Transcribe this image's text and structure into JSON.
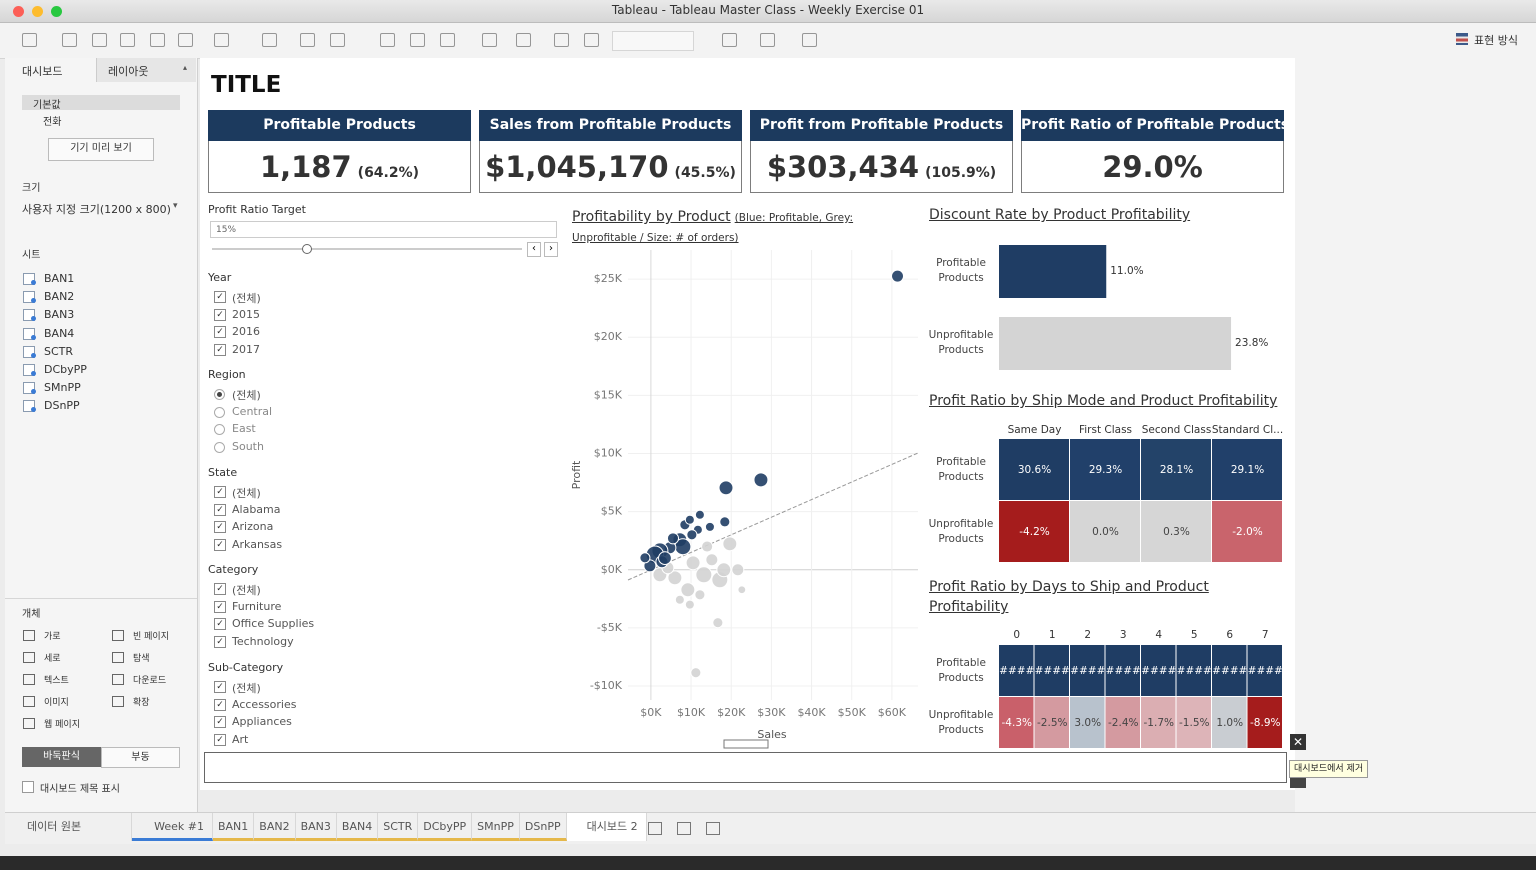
{
  "window": {
    "title": "Tableau - Tableau Master Class - Weekly Exercise 01"
  },
  "toolbar": {
    "show_me": "표현 방식"
  },
  "side_panel": {
    "tabs": [
      "대시보드",
      "레이아웃"
    ],
    "devices": [
      "기본값",
      "전화"
    ],
    "preview_button": "기기 미리 보기",
    "size_label": "크기",
    "size_value": "사용자 지정 크기(1200 x 800)",
    "sheets_label": "시트",
    "sheets": [
      "BAN1",
      "BAN2",
      "BAN3",
      "BAN4",
      "SCTR",
      "DCbyPP",
      "SMnPP",
      "DSnPP"
    ],
    "objects_label": "개체",
    "objects": [
      "가로",
      "빈 페이지",
      "세로",
      "탐색",
      "텍스트",
      "다운로드",
      "이미지",
      "확장",
      "웹 페이지"
    ],
    "layout_modes": [
      "바둑판식",
      "부동"
    ],
    "show_title": "대시보드 제목 표시"
  },
  "dashboard": {
    "title": "TITLE",
    "kpis": [
      {
        "label": "Profitable Products",
        "value": "1,187",
        "pct": "(64.2%)"
      },
      {
        "label": "Sales from Profitable Products",
        "value": "$1,045,170",
        "pct": "(45.5%)"
      },
      {
        "label": "Profit from Profitable Products",
        "value": "$303,434",
        "pct": "(105.9%)"
      },
      {
        "label": "Profit Ratio of Profitable Products",
        "value": "29.0%",
        "pct": null
      }
    ],
    "parameter": {
      "label": "Profit Ratio Target",
      "value": "15%"
    },
    "filters": [
      {
        "label": "Year",
        "type": "checkbox",
        "options": [
          "(전체)",
          "2015",
          "2016",
          "2017"
        ]
      },
      {
        "label": "Region",
        "type": "radio",
        "options": [
          "(전체)",
          "Central",
          "East",
          "South"
        ]
      },
      {
        "label": "State",
        "type": "checkbox",
        "options": [
          "(전체)",
          "Alabama",
          "Arizona",
          "Arkansas"
        ]
      },
      {
        "label": "Category",
        "type": "checkbox",
        "options": [
          "(전체)",
          "Furniture",
          "Office Supplies",
          "Technology"
        ]
      },
      {
        "label": "Sub-Category",
        "type": "checkbox",
        "options": [
          "(전체)",
          "Accessories",
          "Appliances",
          "Art"
        ]
      }
    ],
    "scatter": {
      "type": "scatter",
      "title": "Profitability by Product",
      "subtitle": "(Blue: Profitable, Grey: Unprofitable / Size: # of orders)",
      "x_label": "Sales",
      "y_label": "Profit",
      "xlim": [
        -5700,
        66500
      ],
      "ylim": [
        -11200,
        27500
      ],
      "xticks": [
        {
          "value": 0,
          "label": "$0K"
        },
        {
          "value": 10000,
          "label": "$10K"
        },
        {
          "value": 20000,
          "label": "$20K"
        },
        {
          "value": 30000,
          "label": "$30K"
        },
        {
          "value": 40000,
          "label": "$40K"
        },
        {
          "value": 50000,
          "label": "$50K"
        },
        {
          "value": 60000,
          "label": "$60K"
        }
      ],
      "yticks": [
        {
          "value": 25000,
          "label": "$25K"
        },
        {
          "value": 20000,
          "label": "$20K"
        },
        {
          "value": 15000,
          "label": "$15K"
        },
        {
          "value": 10000,
          "label": "$10K"
        },
        {
          "value": 5000,
          "label": "$5K"
        },
        {
          "value": 0,
          "label": "$0K"
        },
        {
          "value": -5000,
          "label": "-$5K"
        },
        {
          "value": -10000,
          "label": "-$10K"
        }
      ],
      "grid": true,
      "series": [
        {
          "color": "#d3d3d3",
          "x": [
            19650,
            21640,
            22640,
            16670,
            11190,
            9700,
            9200,
            13180,
            17160,
            5970,
            2240,
            4230,
            15170,
            12200,
            7210,
            18160,
            10500,
            14000
          ],
          "values": [
            2230,
            0,
            -1720,
            -4550,
            -8850,
            -3000,
            -1720,
            -430,
            -860,
            -690,
            -430,
            170,
            860,
            -2150,
            -2580,
            0,
            600,
            2000
          ],
          "sizes": [
            19,
            14,
            6,
            10,
            10,
            8,
            19,
            25,
            25,
            19,
            19,
            14,
            14,
            10,
            8,
            19,
            19,
            12
          ]
        },
        {
          "color": "#1f3d64",
          "x": [
            61400,
            27400,
            18700,
            18400,
            14700,
            11700,
            8460,
            10200,
            7210,
            7960,
            4730,
            2240,
            1000,
            2740,
            -250,
            -1490,
            9700,
            12200,
            5500,
            3500
          ],
          "values": [
            25250,
            7730,
            7050,
            4120,
            3690,
            3440,
            3870,
            3010,
            2580,
            1980,
            1890,
            1630,
            1290,
            690,
            340,
            1030,
            4300,
            4730,
            2700,
            1000
          ],
          "sizes": [
            14,
            19,
            19,
            10,
            8,
            8,
            10,
            10,
            19,
            25,
            14,
            25,
            30,
            14,
            14,
            10,
            8,
            8,
            12,
            16
          ]
        }
      ]
    },
    "discount": {
      "type": "bar",
      "title": "Discount Rate by Product Profitability",
      "categories": [
        "Profitable Products",
        "Unprofitable Products"
      ],
      "values": [
        11.0,
        23.8
      ],
      "value_labels": [
        "11.0%",
        "23.8%"
      ],
      "colors": [
        "#1f3d64",
        "#d4d4d4"
      ]
    },
    "ship_mode": {
      "type": "heatmap",
      "title": "Profit Ratio by Ship Mode and Product Profitability",
      "columns": [
        "Same Day",
        "First Class",
        "Second Class",
        "Standard Cl..."
      ],
      "rows": [
        "Profitable Products",
        "Unprofitable Products"
      ],
      "values": [
        [
          30.6,
          29.3,
          28.1,
          29.1
        ],
        [
          -4.2,
          0.0,
          0.3,
          -2.0
        ]
      ],
      "value_labels": [
        [
          "30.6%",
          "29.3%",
          "28.1%",
          "29.1%"
        ],
        [
          "-4.2%",
          "0.0%",
          "0.3%",
          "-2.0%"
        ]
      ],
      "colors": [
        [
          "#1f3d64",
          "#21406a",
          "#234369",
          "#21406a"
        ],
        [
          "#a51c1c",
          "#d6d6d6",
          "#d6d6d6",
          "#c9646c"
        ]
      ]
    },
    "days_to_ship": {
      "type": "heatmap",
      "title": "Profit Ratio by Days to Ship and Product Profitability",
      "columns": [
        0,
        1,
        2,
        3,
        4,
        5,
        6,
        7
      ],
      "rows": [
        "Profitable Products",
        "Unprofitable Products"
      ],
      "values": [
        [
          null,
          null,
          null,
          null,
          null,
          null,
          null,
          null
        ],
        [
          -4.3,
          -2.5,
          3.0,
          -2.4,
          -1.7,
          -1.5,
          1.0,
          -8.9
        ]
      ],
      "value_labels": [
        [
          "####",
          "####",
          "####",
          "####",
          "####",
          "####",
          "####",
          "####"
        ],
        [
          "-4.3%",
          "-2.5%",
          "3.0%",
          "-2.4%",
          "-1.7%",
          "-1.5%",
          "1.0%",
          "-8.9%"
        ]
      ],
      "colors": [
        [
          "#1f3d64",
          "#1f3d64",
          "#1f3d64",
          "#1f3d64",
          "#1f3d64",
          "#1f3d64",
          "#1f3d64",
          "#1f3d64"
        ],
        [
          "#c9606a",
          "#d49aa0",
          "#b8c2cd",
          "#d49aa0",
          "#dbaeb2",
          "#ddb4b8",
          "#c9cdd2",
          "#a51c1c"
        ]
      ]
    }
  },
  "remove_tooltip": "대시보드에서 제거",
  "tabs": {
    "data_source": "데이터 원본",
    "sheets": [
      "Week #1",
      "BAN1",
      "BAN2",
      "BAN3",
      "BAN4",
      "SCTR",
      "DCbyPP",
      "SMnPP",
      "DSnPP",
      "대시보드 2"
    ]
  }
}
